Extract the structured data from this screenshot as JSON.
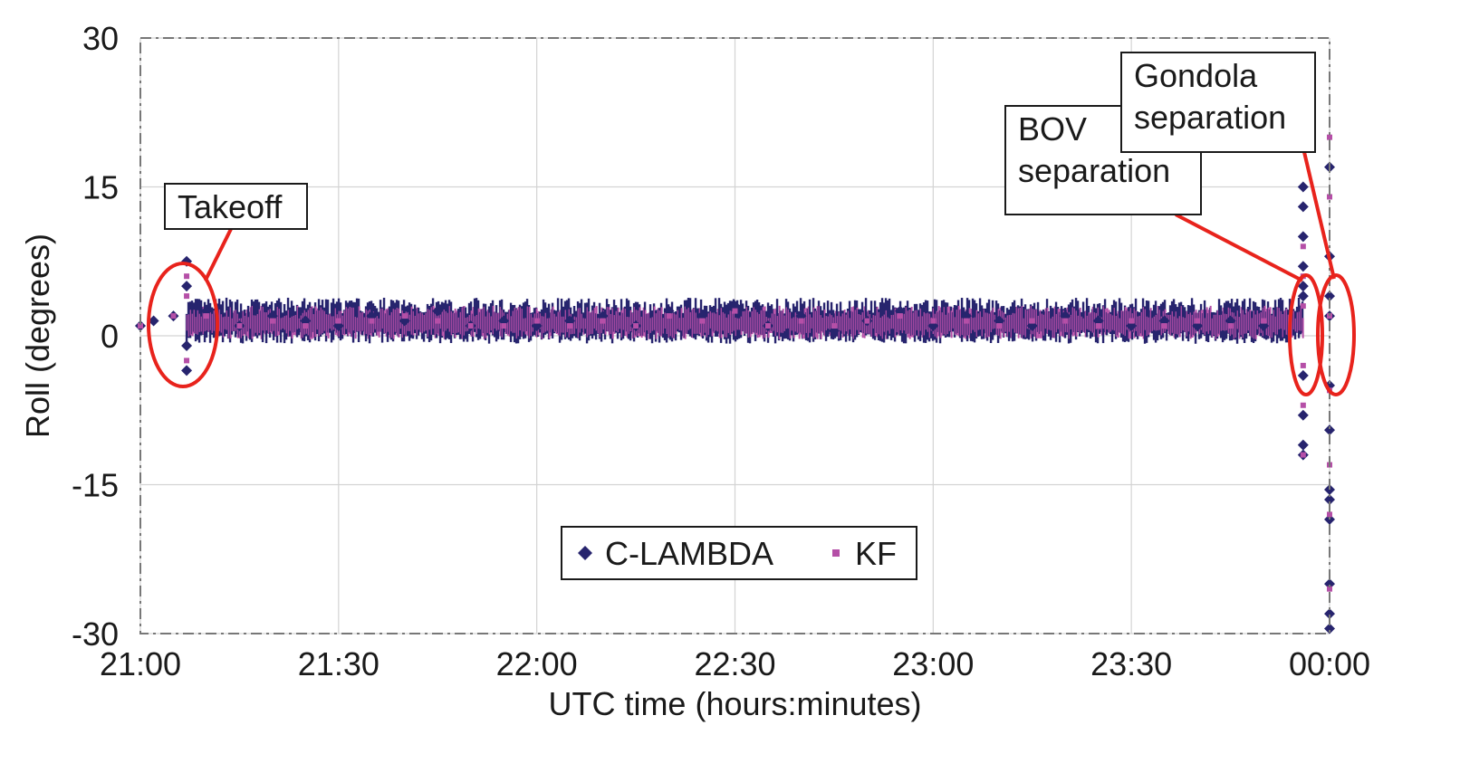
{
  "chart_data": {
    "type": "scatter",
    "title": "",
    "xlabel": "UTC time (hours:minutes)",
    "ylabel": "Roll (degrees)",
    "x_ticks": [
      "21:00",
      "21:30",
      "22:00",
      "22:30",
      "23:00",
      "23:30",
      "00:00"
    ],
    "y_ticks": [
      "30",
      "15",
      "0",
      "-15",
      "-30"
    ],
    "xlim": [
      "21:00",
      "00:00"
    ],
    "ylim": [
      -30,
      30
    ],
    "grid": true,
    "legend_position": "bottom-center",
    "series": [
      {
        "name": "C-LAMBDA",
        "marker": "diamond",
        "color": "#27246e",
        "points": [
          [
            "21:00",
            1
          ],
          [
            "21:02",
            1.5
          ],
          [
            "21:05",
            2
          ],
          [
            "21:07",
            7.5
          ],
          [
            "21:07",
            -3.5
          ],
          [
            "21:07",
            5
          ],
          [
            "21:07",
            -1
          ],
          [
            "21:10",
            2.5
          ],
          [
            "21:15",
            1
          ],
          [
            "21:20",
            2
          ],
          [
            "21:25",
            1.5
          ],
          [
            "21:30",
            1
          ],
          [
            "21:35",
            2
          ],
          [
            "21:40",
            1.5
          ],
          [
            "21:45",
            2.5
          ],
          [
            "21:50",
            1
          ],
          [
            "21:55",
            1.5
          ],
          [
            "22:00",
            1
          ],
          [
            "22:05",
            1.5
          ],
          [
            "22:10",
            2
          ],
          [
            "22:15",
            1
          ],
          [
            "22:20",
            2.5
          ],
          [
            "22:25",
            2
          ],
          [
            "22:30",
            3
          ],
          [
            "22:35",
            1
          ],
          [
            "22:40",
            2
          ],
          [
            "22:45",
            0.5
          ],
          [
            "22:50",
            1.5
          ],
          [
            "22:55",
            2.5
          ],
          [
            "23:00",
            1
          ],
          [
            "23:05",
            2
          ],
          [
            "23:10",
            1.5
          ],
          [
            "23:15",
            1
          ],
          [
            "23:20",
            2
          ],
          [
            "23:25",
            1.5
          ],
          [
            "23:30",
            1
          ],
          [
            "23:35",
            1.5
          ],
          [
            "23:40",
            1
          ],
          [
            "23:45",
            1.5
          ],
          [
            "23:50",
            1
          ],
          [
            "23:56",
            15
          ],
          [
            "23:56",
            13
          ],
          [
            "23:56",
            10
          ],
          [
            "23:56",
            7
          ],
          [
            "23:56",
            4
          ],
          [
            "23:56",
            -4
          ],
          [
            "23:56",
            -8
          ],
          [
            "23:56",
            -11
          ],
          [
            "23:56",
            -12
          ],
          [
            "23:56",
            5
          ],
          [
            "00:00",
            17
          ],
          [
            "00:00",
            8
          ],
          [
            "00:00",
            4
          ],
          [
            "00:00",
            2
          ],
          [
            "00:00",
            -5
          ],
          [
            "00:00",
            -9.5
          ],
          [
            "00:00",
            -15.5
          ],
          [
            "00:00",
            -16.5
          ],
          [
            "00:00",
            -18.5
          ],
          [
            "00:00",
            -25
          ],
          [
            "00:00",
            -28
          ],
          [
            "00:00",
            -29.5
          ]
        ]
      },
      {
        "name": "KF",
        "marker": "square",
        "color": "#b54fa7",
        "points": [
          [
            "21:00",
            1
          ],
          [
            "21:05",
            2
          ],
          [
            "21:07",
            6
          ],
          [
            "21:07",
            -2.5
          ],
          [
            "21:07",
            4
          ],
          [
            "21:10",
            2
          ],
          [
            "21:15",
            1
          ],
          [
            "21:20",
            1.5
          ],
          [
            "21:25",
            1
          ],
          [
            "21:30",
            1.5
          ],
          [
            "21:35",
            1.5
          ],
          [
            "21:40",
            2
          ],
          [
            "21:45",
            1.5
          ],
          [
            "21:50",
            1
          ],
          [
            "21:55",
            1
          ],
          [
            "22:00",
            1.5
          ],
          [
            "22:05",
            1
          ],
          [
            "22:10",
            1.5
          ],
          [
            "22:15",
            1
          ],
          [
            "22:20",
            2
          ],
          [
            "22:25",
            1.5
          ],
          [
            "22:30",
            2.5
          ],
          [
            "22:35",
            1
          ],
          [
            "22:40",
            1.5
          ],
          [
            "22:45",
            1
          ],
          [
            "22:50",
            1.5
          ],
          [
            "22:55",
            2
          ],
          [
            "23:00",
            1.5
          ],
          [
            "23:05",
            1.5
          ],
          [
            "23:10",
            1
          ],
          [
            "23:15",
            1.5
          ],
          [
            "23:20",
            1.5
          ],
          [
            "23:25",
            1
          ],
          [
            "23:30",
            1.5
          ],
          [
            "23:35",
            1
          ],
          [
            "23:40",
            1.5
          ],
          [
            "23:45",
            1
          ],
          [
            "23:50",
            1.5
          ],
          [
            "23:56",
            9
          ],
          [
            "23:56",
            6
          ],
          [
            "23:56",
            3
          ],
          [
            "23:56",
            -3
          ],
          [
            "23:56",
            -7
          ],
          [
            "23:56",
            -12
          ],
          [
            "00:00",
            20
          ],
          [
            "00:00",
            14
          ],
          [
            "00:00",
            2
          ],
          [
            "00:00",
            -5.5
          ],
          [
            "00:00",
            -13
          ],
          [
            "00:00",
            -18
          ],
          [
            "00:00",
            -25.5
          ]
        ]
      }
    ],
    "annotations": [
      {
        "label": "Takeoff",
        "lines": [
          "Takeoff"
        ],
        "x": "21:07",
        "y": 1.5
      },
      {
        "label": "BOV separation",
        "lines": [
          "BOV",
          "separation"
        ],
        "x": "23:56",
        "y": 1
      },
      {
        "label": "Gondola separation",
        "lines": [
          "Gondola",
          "separation"
        ],
        "x": "00:00",
        "y": 0
      }
    ]
  }
}
